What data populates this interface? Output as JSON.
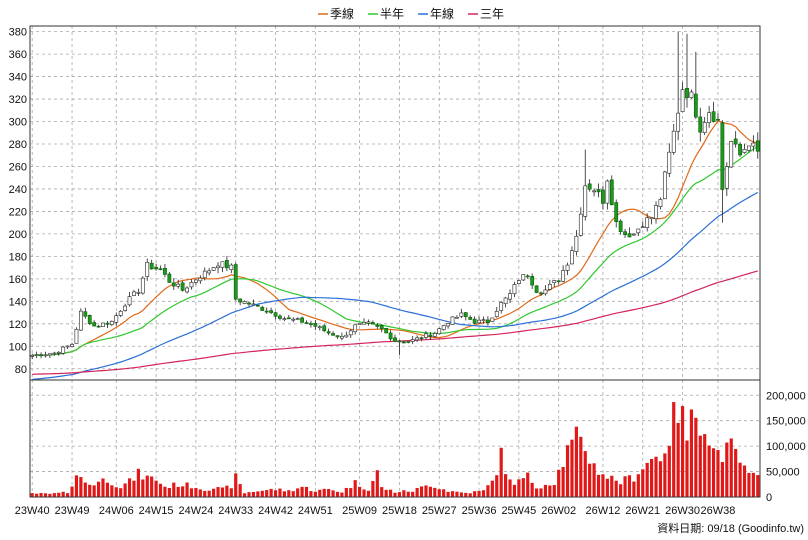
{
  "chart_data": {
    "type": "candlestick",
    "legend": [
      {
        "name": "季線",
        "color": "#e06a1a"
      },
      {
        "name": "半年",
        "color": "#2fc82f"
      },
      {
        "name": "年線",
        "color": "#2b6fd6"
      },
      {
        "name": "三年",
        "color": "#d4245a"
      }
    ],
    "price_axis": {
      "ylim": [
        70,
        385
      ],
      "ticks": [
        80,
        100,
        120,
        140,
        160,
        180,
        200,
        220,
        240,
        260,
        280,
        300,
        320,
        340,
        360,
        380
      ]
    },
    "volume_axis": {
      "ylim": [
        0,
        230000
      ],
      "ticks": [
        0,
        50000,
        100000,
        150000,
        200000
      ],
      "tick_labels": [
        "0",
        "50,000",
        "100,000",
        "150,000",
        "200,000"
      ]
    },
    "x_ticks": [
      {
        "label": "23W40",
        "i": 0
      },
      {
        "label": "23W49",
        "i": 9
      },
      {
        "label": "24W06",
        "i": 19
      },
      {
        "label": "24W15",
        "i": 28
      },
      {
        "label": "24W24",
        "i": 37
      },
      {
        "label": "24W33",
        "i": 46
      },
      {
        "label": "24W42",
        "i": 55
      },
      {
        "label": "24W51",
        "i": 64
      },
      {
        "label": "25W09",
        "i": 74
      },
      {
        "label": "25W18",
        "i": 83
      },
      {
        "label": "25W27",
        "i": 92
      },
      {
        "label": "25W36",
        "i": 101
      },
      {
        "label": "25W45",
        "i": 110
      },
      {
        "label": "26W02",
        "i": 119
      },
      {
        "label": "26W12",
        "i": 129
      },
      {
        "label": "26W21",
        "i": 138
      },
      {
        "label": "26W30",
        "i": 147
      },
      {
        "label": "26W38",
        "i": 155
      }
    ],
    "footer": "資料日期: 09/18  (Goodinfo.tw)",
    "anchors": {
      "close": [
        [
          0,
          92
        ],
        [
          5,
          94
        ],
        [
          9,
          102
        ],
        [
          11,
          130
        ],
        [
          14,
          118
        ],
        [
          18,
          122
        ],
        [
          21,
          138
        ],
        [
          24,
          150
        ],
        [
          26,
          172
        ],
        [
          29,
          168
        ],
        [
          31,
          158
        ],
        [
          34,
          150
        ],
        [
          37,
          160
        ],
        [
          40,
          168
        ],
        [
          42,
          174
        ],
        [
          45,
          170
        ],
        [
          46,
          142
        ],
        [
          49,
          138
        ],
        [
          53,
          132
        ],
        [
          57,
          125
        ],
        [
          61,
          122
        ],
        [
          64,
          118
        ],
        [
          67,
          112
        ],
        [
          70,
          108
        ],
        [
          73,
          118
        ],
        [
          76,
          120
        ],
        [
          79,
          115
        ],
        [
          82,
          105
        ],
        [
          85,
          104
        ],
        [
          88,
          108
        ],
        [
          91,
          112
        ],
        [
          94,
          122
        ],
        [
          97,
          128
        ],
        [
          100,
          122
        ],
        [
          103,
          122
        ],
        [
          106,
          138
        ],
        [
          108,
          146
        ],
        [
          110,
          160
        ],
        [
          112,
          164
        ],
        [
          114,
          150
        ],
        [
          116,
          150
        ],
        [
          119,
          160
        ],
        [
          121,
          175
        ],
        [
          123,
          198
        ],
        [
          125,
          244
        ],
        [
          127,
          240
        ],
        [
          129,
          230
        ],
        [
          130,
          250
        ],
        [
          132,
          210
        ],
        [
          134,
          200
        ],
        [
          136,
          200
        ],
        [
          138,
          210
        ],
        [
          140,
          215
        ],
        [
          142,
          232
        ],
        [
          145,
          290
        ],
        [
          147,
          330
        ],
        [
          149,
          322
        ],
        [
          151,
          295
        ],
        [
          153,
          310
        ],
        [
          155,
          300
        ],
        [
          156,
          240
        ],
        [
          158,
          282
        ],
        [
          160,
          270
        ],
        [
          162,
          282
        ],
        [
          164,
          272
        ]
      ],
      "high_peaks": [
        [
          125,
          275
        ],
        [
          146,
          380
        ],
        [
          148,
          378
        ],
        [
          150,
          362
        ]
      ],
      "low_troughs": [
        [
          83,
          92
        ],
        [
          151,
          296
        ],
        [
          156,
          210
        ]
      ],
      "volume": [
        [
          0,
          7000
        ],
        [
          4,
          6000
        ],
        [
          8,
          9000
        ],
        [
          10,
          45000
        ],
        [
          11,
          35000
        ],
        [
          13,
          25000
        ],
        [
          15,
          30000
        ],
        [
          17,
          35000
        ],
        [
          20,
          20000
        ],
        [
          22,
          30000
        ],
        [
          24,
          45000
        ],
        [
          26,
          38000
        ],
        [
          28,
          35000
        ],
        [
          30,
          20000
        ],
        [
          33,
          25000
        ],
        [
          36,
          22000
        ],
        [
          39,
          15000
        ],
        [
          41,
          18000
        ],
        [
          43,
          15000
        ],
        [
          45,
          22000
        ],
        [
          46,
          38000
        ],
        [
          48,
          8000
        ],
        [
          51,
          12000
        ],
        [
          55,
          15000
        ],
        [
          58,
          12000
        ],
        [
          61,
          20000
        ],
        [
          64,
          12000
        ],
        [
          67,
          15000
        ],
        [
          70,
          10000
        ],
        [
          73,
          28000
        ],
        [
          76,
          15000
        ],
        [
          78,
          48000
        ],
        [
          79,
          18000
        ],
        [
          82,
          10000
        ],
        [
          86,
          12000
        ],
        [
          90,
          25000
        ],
        [
          94,
          12000
        ],
        [
          98,
          8000
        ],
        [
          102,
          12000
        ],
        [
          104,
          30000
        ],
        [
          106,
          80000
        ],
        [
          108,
          30000
        ],
        [
          110,
          30000
        ],
        [
          112,
          40000
        ],
        [
          114,
          20000
        ],
        [
          116,
          25000
        ],
        [
          118,
          30000
        ],
        [
          120,
          70000
        ],
        [
          121,
          90000
        ],
        [
          123,
          112000
        ],
        [
          125,
          98000
        ],
        [
          127,
          60000
        ],
        [
          130,
          40000
        ],
        [
          133,
          30000
        ],
        [
          136,
          40000
        ],
        [
          138,
          60000
        ],
        [
          140,
          75000
        ],
        [
          142,
          80000
        ],
        [
          144,
          120000
        ],
        [
          146,
          180000
        ],
        [
          148,
          120000
        ],
        [
          150,
          170000
        ],
        [
          152,
          150000
        ],
        [
          154,
          90000
        ],
        [
          156,
          85000
        ],
        [
          158,
          95000
        ],
        [
          160,
          70000
        ],
        [
          162,
          40000
        ],
        [
          164,
          38000
        ]
      ]
    }
  }
}
